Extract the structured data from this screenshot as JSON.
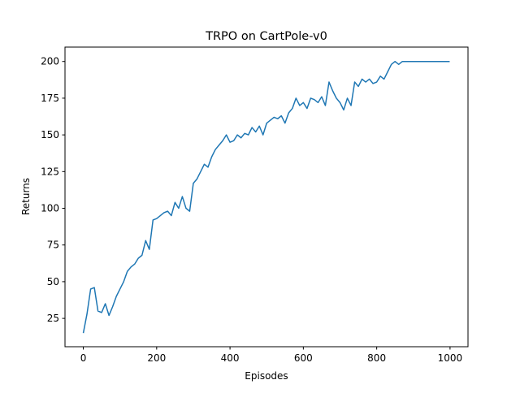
{
  "chart_data": {
    "type": "line",
    "title": "TRPO on CartPole-v0",
    "xlabel": "Episodes",
    "ylabel": "Returns",
    "x": [
      0,
      10,
      20,
      30,
      40,
      50,
      60,
      70,
      80,
      90,
      100,
      110,
      120,
      130,
      140,
      150,
      160,
      170,
      180,
      190,
      200,
      210,
      220,
      230,
      240,
      250,
      260,
      270,
      280,
      290,
      300,
      310,
      320,
      330,
      340,
      350,
      360,
      370,
      380,
      390,
      400,
      410,
      420,
      430,
      440,
      450,
      460,
      470,
      480,
      490,
      500,
      510,
      520,
      530,
      540,
      550,
      560,
      570,
      580,
      590,
      600,
      610,
      620,
      630,
      640,
      650,
      660,
      670,
      680,
      690,
      700,
      710,
      720,
      730,
      740,
      750,
      760,
      770,
      780,
      790,
      800,
      810,
      820,
      830,
      840,
      850,
      860,
      870,
      880,
      890,
      900,
      910,
      920,
      930,
      940,
      950,
      960,
      970,
      980,
      990,
      999
    ],
    "values": [
      15,
      28,
      45,
      46,
      30,
      29,
      35,
      27,
      33,
      40,
      45,
      50,
      57,
      60,
      62,
      66,
      68,
      78,
      72,
      92,
      93,
      95,
      97,
      98,
      95,
      104,
      100,
      108,
      100,
      98,
      117,
      120,
      125,
      130,
      128,
      135,
      140,
      143,
      146,
      150,
      145,
      146,
      150,
      148,
      151,
      150,
      155,
      152,
      156,
      150,
      158,
      160,
      162,
      161,
      163,
      158,
      165,
      168,
      175,
      170,
      172,
      168,
      175,
      174,
      172,
      176,
      170,
      186,
      180,
      175,
      172,
      167,
      175,
      170,
      186,
      183,
      188,
      186,
      188,
      185,
      186,
      190,
      188,
      193,
      198,
      200,
      198,
      200,
      200,
      200,
      200,
      200,
      200,
      200,
      200,
      200,
      200,
      200,
      200,
      200,
      200
    ],
    "color": "#1f77b4",
    "grid": false,
    "xlim": [
      -49.95,
      1048.95
    ],
    "xticks": [
      0,
      200,
      400,
      600,
      800,
      1000
    ],
    "ylim": [
      5.7,
      209.8
    ],
    "yticks": [
      25,
      50,
      75,
      100,
      125,
      150,
      175,
      200
    ]
  }
}
